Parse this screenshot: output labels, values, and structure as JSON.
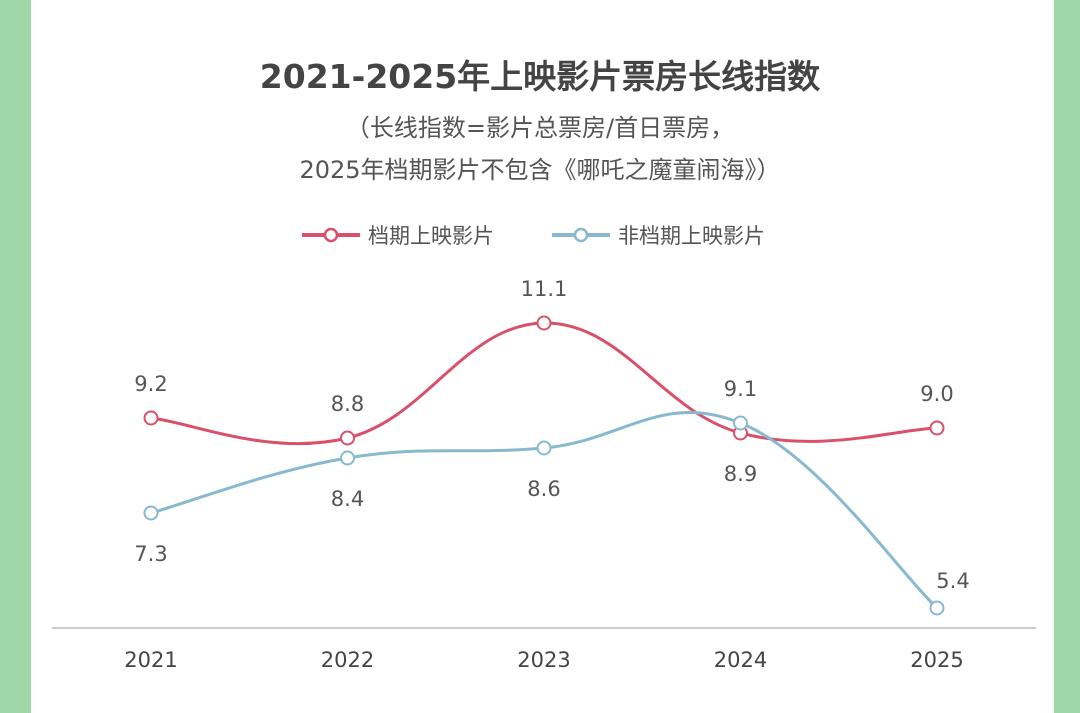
{
  "chart_data": {
    "type": "line",
    "title": "2021-2025年上映影片票房长线指数",
    "subtitle_lines": [
      "（长线指数=影片总票房/首日票房，",
      "2025年档期影片不包含《哪吒之魔童闹海》）"
    ],
    "xlabel": "",
    "ylabel": "",
    "categories": [
      "2021",
      "2022",
      "2023",
      "2024",
      "2025"
    ],
    "series": [
      {
        "name": "档期上映影片",
        "color": "#d9506a",
        "values": [
          9.2,
          8.8,
          11.1,
          8.9,
          9.0
        ]
      },
      {
        "name": "非档期上映影片",
        "color": "#88b9cf",
        "values": [
          7.3,
          8.4,
          8.6,
          9.1,
          5.4
        ]
      }
    ],
    "ylim": [
      5,
      12
    ],
    "grid": false,
    "legend": "top-center",
    "background_color": "#9fd6a8"
  }
}
